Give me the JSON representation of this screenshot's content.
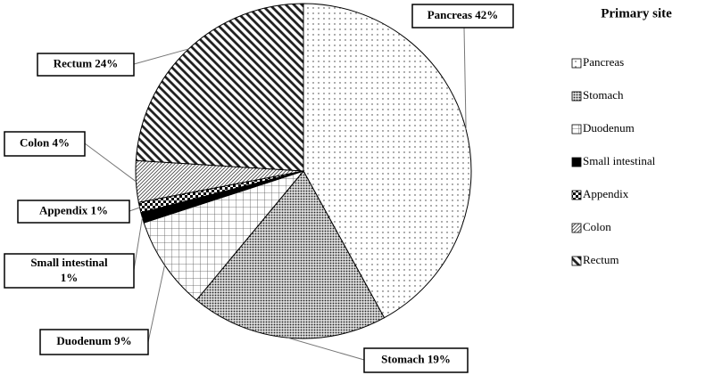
{
  "chart_data": {
    "type": "pie",
    "categories": [
      "Pancreas",
      "Stomach",
      "Duodenum",
      "Small intestinal",
      "Appendix",
      "Colon",
      "Rectum"
    ],
    "values": [
      42,
      19,
      9,
      1,
      1,
      4,
      24
    ],
    "value_labels": [
      "42%",
      "19%",
      "9%",
      "1%",
      "1%",
      "4%",
      "24%"
    ],
    "fills": [
      "sparse-dots",
      "dense-dots",
      "grid",
      "solid",
      "checker",
      "fine-hatch",
      "stripes"
    ],
    "legend_title": "Primary site",
    "legend": "right"
  }
}
